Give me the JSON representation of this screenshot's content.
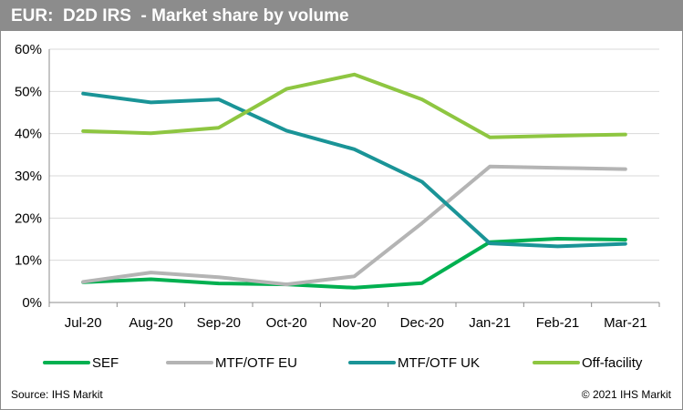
{
  "title": "EUR:  D2D IRS  - Market share by volume",
  "footer": {
    "source": "Source: IHS Markit",
    "copyright": "© 2021 IHS Markit"
  },
  "colors": {
    "title_bar": "#8c8c8c",
    "grid": "#d9d9d9",
    "axis": "#8c8c8c"
  },
  "chart_data": {
    "type": "line",
    "title": "EUR:  D2D IRS  - Market share by volume",
    "xlabel": "",
    "ylabel": "",
    "categories": [
      "Jul-20",
      "Aug-20",
      "Sep-20",
      "Oct-20",
      "Nov-20",
      "Dec-20",
      "Jan-21",
      "Feb-21",
      "Mar-21"
    ],
    "ylim": [
      0,
      60
    ],
    "yticks": [
      0,
      10,
      20,
      30,
      40,
      50,
      60
    ],
    "ytick_labels": [
      "0%",
      "10%",
      "20%",
      "30%",
      "40%",
      "50%",
      "60%"
    ],
    "grid": true,
    "legend_position": "bottom",
    "series": [
      {
        "name": "SEF",
        "color": "#00b050",
        "values": [
          4.8,
          5.5,
          4.5,
          4.3,
          3.5,
          4.6,
          14.3,
          15.1,
          14.9
        ]
      },
      {
        "name": "MTF/OTF EU",
        "color": "#b4b4b4",
        "values": [
          4.9,
          7.1,
          6.0,
          4.3,
          6.2,
          18.8,
          32.2,
          31.9,
          31.6
        ]
      },
      {
        "name": "MTF/OTF UK",
        "color": "#1a9497",
        "values": [
          49.5,
          47.4,
          48.1,
          40.7,
          36.3,
          28.6,
          14.0,
          13.3,
          13.9
        ]
      },
      {
        "name": "Off-facility",
        "color": "#8ec641",
        "values": [
          40.6,
          40.1,
          41.4,
          50.6,
          54.0,
          48.1,
          39.1,
          39.5,
          39.8
        ]
      }
    ]
  }
}
